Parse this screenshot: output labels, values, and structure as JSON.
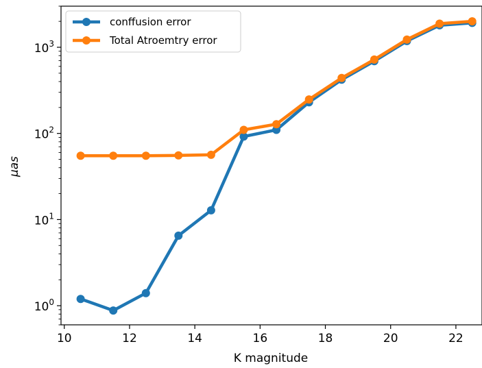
{
  "chart_data": {
    "type": "line",
    "title": "",
    "xlabel": "K magnitude",
    "ylabel": "μas",
    "xlim": [
      9.9,
      22.8
    ],
    "ylim": [
      0.6,
      3000
    ],
    "yscale": "log",
    "grid": false,
    "legend_position": "top-left",
    "x_ticks": [
      10,
      12,
      14,
      16,
      18,
      20,
      22
    ],
    "x_tick_labels": [
      "10",
      "12",
      "14",
      "16",
      "18",
      "20",
      "22"
    ],
    "y_ticks": [
      1,
      10,
      100,
      1000
    ],
    "y_tick_labels": [
      {
        "base": "10",
        "exp": "0"
      },
      {
        "base": "10",
        "exp": "1"
      },
      {
        "base": "10",
        "exp": "2"
      },
      {
        "base": "10",
        "exp": "3"
      }
    ],
    "x": [
      10.5,
      11.5,
      12.5,
      13.5,
      14.5,
      15.5,
      16.5,
      17.5,
      18.5,
      19.5,
      20.5,
      21.5,
      22.5
    ],
    "series": [
      {
        "name": "conffusion error",
        "color": "#1f77b4",
        "values": [
          1.2,
          0.88,
          1.4,
          6.5,
          12.8,
          92,
          110,
          230,
          420,
          690,
          1180,
          1800,
          1920
        ]
      },
      {
        "name": "Total Atroemtry error",
        "color": "#ff7f0e",
        "values": [
          55,
          55,
          55,
          55.5,
          56.5,
          110,
          128,
          248,
          440,
          720,
          1230,
          1880,
          2000
        ]
      }
    ]
  }
}
